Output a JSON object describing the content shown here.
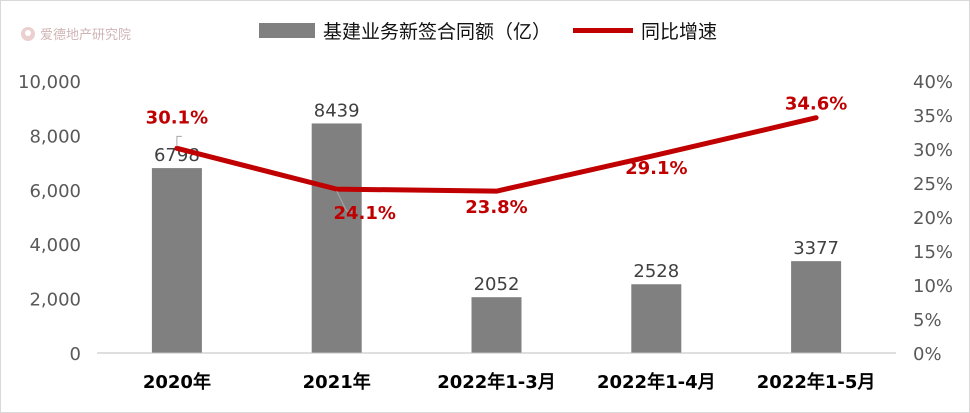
{
  "watermark": "爱德地产研究院",
  "colors": {
    "bar": "#808080",
    "line": "#c00000",
    "axis": "#595959",
    "tick_text": "#595959",
    "category_text": "#000000"
  },
  "chart_data": {
    "type": "bar",
    "title": "",
    "categories": [
      "2020年",
      "2021年",
      "2022年1-3月",
      "2022年1-4月",
      "2022年1-5月"
    ],
    "series": [
      {
        "name": "基建业务新签合同额（亿）",
        "type": "bar",
        "axis": "left",
        "values": [
          6798,
          8439,
          2052,
          2528,
          3377
        ],
        "labels": [
          "6798",
          "8439",
          "2052",
          "2528",
          "3377"
        ]
      },
      {
        "name": "同比增速",
        "type": "line",
        "axis": "right",
        "values": [
          30.1,
          24.1,
          23.8,
          29.1,
          34.6
        ],
        "labels": [
          "30.1%",
          "24.1%",
          "23.8%",
          "29.1%",
          "34.6%"
        ]
      }
    ],
    "y_left": {
      "min": 0,
      "max": 10000,
      "ticks": [
        0,
        2000,
        4000,
        6000,
        8000,
        10000
      ],
      "tick_labels": [
        "0",
        "2,000",
        "4,000",
        "6,000",
        "8,000",
        "10,000"
      ]
    },
    "y_right": {
      "min": 0,
      "max": 40,
      "ticks": [
        0,
        5,
        10,
        15,
        20,
        25,
        30,
        35,
        40
      ],
      "tick_labels": [
        "0%",
        "5%",
        "10%",
        "15%",
        "20%",
        "25%",
        "30%",
        "35%",
        "40%"
      ]
    },
    "grid": false,
    "legend_position": "top"
  }
}
